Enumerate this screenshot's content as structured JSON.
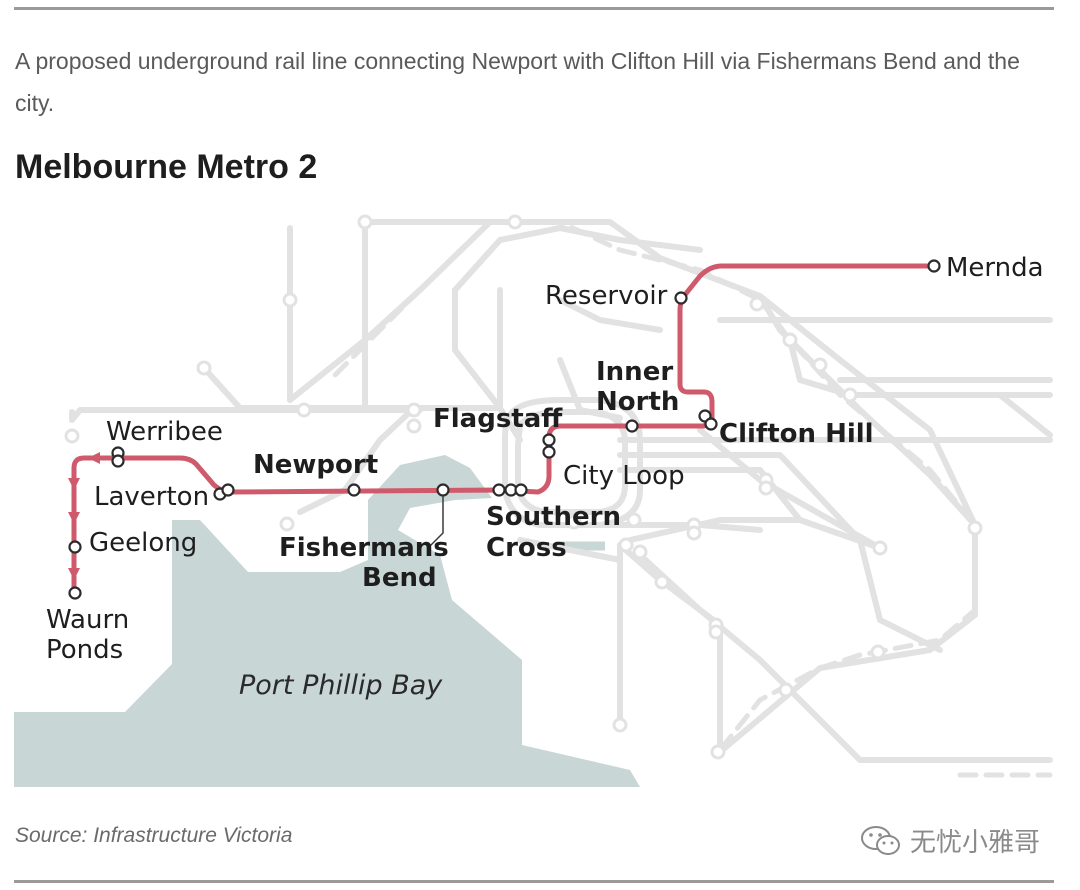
{
  "subtitle": "A proposed underground rail line connecting Newport with Clifton Hill via Fishermans Bend and the city.",
  "title": "Melbourne Metro 2",
  "map": {
    "colors": {
      "route": "#cf5a6c",
      "network": "#e2e2e2",
      "water": "#c8d6d5",
      "label": "#1e1e1e"
    },
    "stations": {
      "mernda": "Mernda",
      "reservoir": "Reservoir",
      "inner_north_1": "Inner",
      "inner_north_2": "North",
      "clifton_hill": "Clifton Hill",
      "flagstaff": "Flagstaff",
      "city_loop": "City Loop",
      "newport": "Newport",
      "werribee": "Werribee",
      "laverton": "Laverton",
      "geelong": "Geelong",
      "waurn_ponds_1": "Waurn",
      "waurn_ponds_2": "Ponds",
      "southern_cross_1": "Southern",
      "southern_cross_2": "Cross",
      "fishermans_bend_1": "Fishermans",
      "fishermans_bend_2": "Bend"
    },
    "bay_label": "Port Phillip Bay"
  },
  "source": "Source: Infrastructure Victoria",
  "watermark": "无忧小雅哥"
}
